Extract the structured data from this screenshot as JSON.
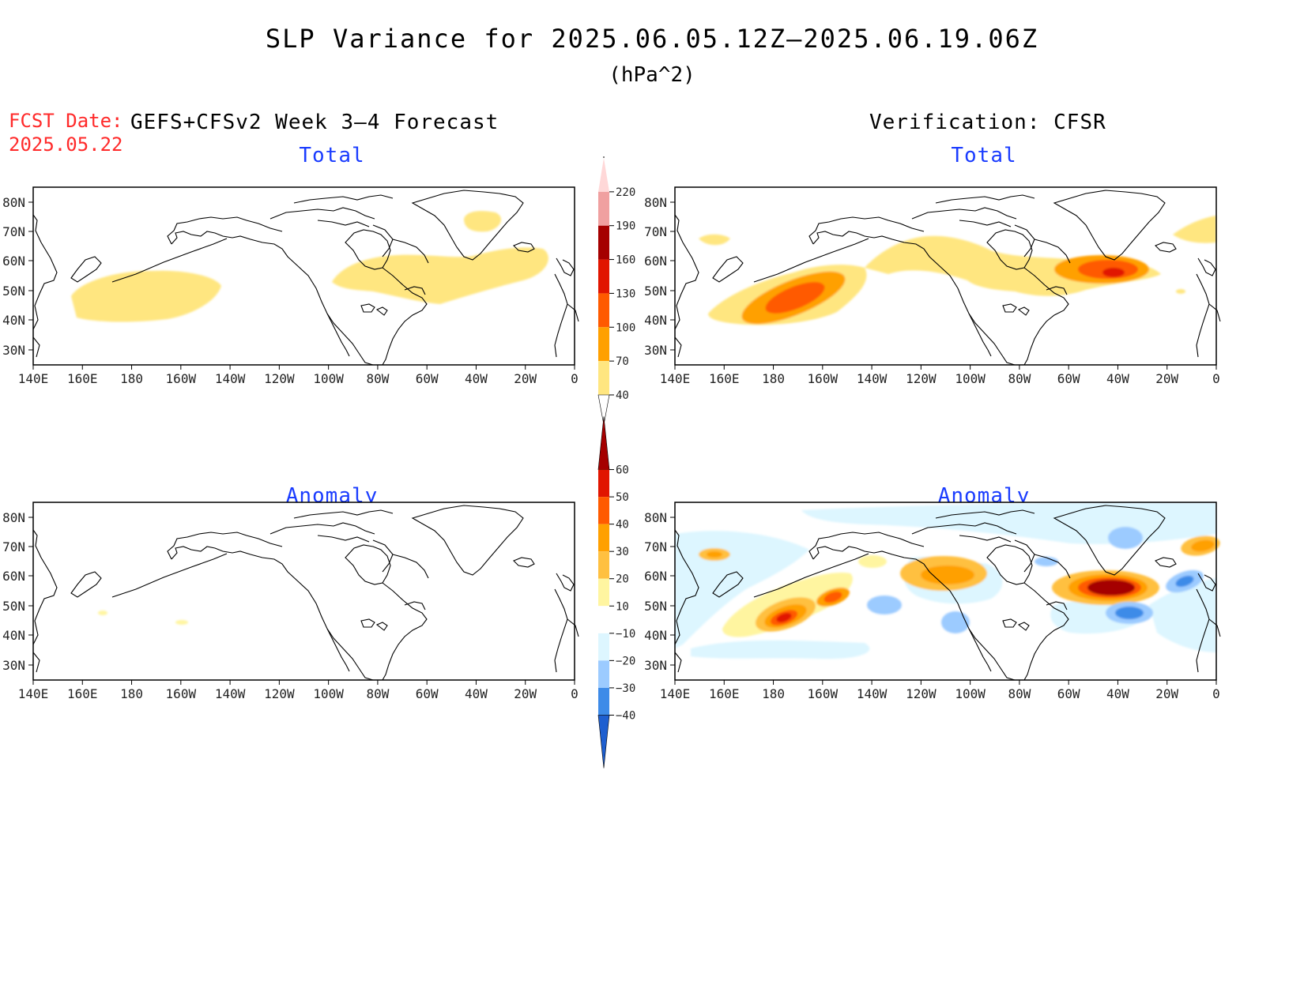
{
  "title": "SLP Variance for 2025.06.05.12Z–2025.06.19.06Z",
  "units": "(hPa^2)",
  "fcst_label": "FCST Date:",
  "fcst_date": "2025.05.22",
  "left_heading": "GEFS+CFSv2 Week 3–4 Forecast",
  "right_heading": "Verification: CFSR",
  "panels": {
    "fcst_total": "Total",
    "verif_total": "Total",
    "fcst_anomaly": "Anomaly",
    "verif_anomaly": "Anomaly"
  },
  "lat_ticks": [
    "80N",
    "70N",
    "60N",
    "50N",
    "40N",
    "30N"
  ],
  "lon_ticks": [
    "140E",
    "160E",
    "180",
    "160W",
    "140W",
    "120W",
    "100W",
    "80W",
    "60W",
    "40W",
    "20W",
    "0"
  ],
  "total_colorbar": {
    "levels": [
      "40",
      "70",
      "100",
      "130",
      "160",
      "190",
      "220"
    ],
    "colors": [
      "#ffe680",
      "#ffa000",
      "#ff5a00",
      "#e11500",
      "#a50000",
      "#f0a0a0",
      "#ffd8d8"
    ]
  },
  "anomaly_colorbar": {
    "levels": [
      "60",
      "50",
      "40",
      "30",
      "20",
      "10",
      "−10",
      "−20",
      "−30",
      "−40"
    ],
    "colors": [
      "#a50000",
      "#e11500",
      "#ff5a00",
      "#ffa000",
      "#ffc040",
      "#fff5a0",
      "#ffffff",
      "#ddf6ff",
      "#9ccbff",
      "#3d8be8",
      "#1e5fd0"
    ]
  },
  "colors": {
    "title_blue": "#1a3cff",
    "fcst_red": "#ff2a2a",
    "light_yellow": "#ffe680"
  }
}
